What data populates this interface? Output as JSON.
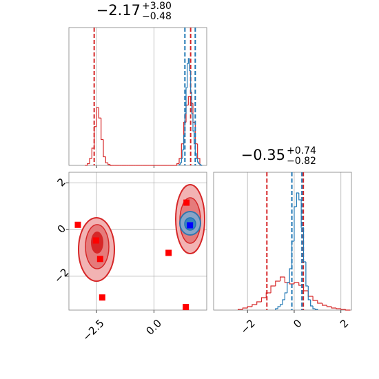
{
  "chart_data": [
    {
      "type": "histogram",
      "title": {
        "value": "−2.17",
        "upper": "+3.80",
        "lower": "−0.48"
      },
      "xlim": [
        -3.7,
        2.3
      ],
      "ylim": [
        0,
        160
      ],
      "xticks": [
        {
          "value": -2.5,
          "label": "−2.5"
        },
        {
          "value": 0,
          "label": "0.0"
        }
      ],
      "grid": true,
      "series": [
        {
          "color": "#d62728",
          "bins": [
            -3.0,
            -2.9,
            -2.8,
            -2.7,
            -2.6,
            -2.5,
            -2.4,
            -2.3,
            -2.2,
            -2.1,
            -2.0,
            -1.9,
            -1.8,
            -1.7,
            -1.6,
            -1.5,
            -1.4,
            -1.3,
            -1.2,
            -1.1,
            -1.0,
            -0.9,
            -0.8,
            -0.7,
            -0.6,
            -0.5,
            -0.4,
            -0.3,
            -0.2,
            -0.1,
            0.0,
            0.1,
            0.2,
            0.3,
            0.4,
            0.5,
            0.6,
            0.7,
            0.8,
            0.9,
            1.0,
            1.1,
            1.2,
            1.3,
            1.4,
            1.5,
            1.6,
            1.7,
            1.8,
            1.9,
            2.0
          ],
          "values": [
            0,
            2,
            8,
            20,
            45,
            67,
            55,
            30,
            10,
            3,
            1,
            0,
            0,
            0,
            0,
            0,
            0,
            0,
            0,
            0,
            0,
            0,
            0,
            0,
            0,
            0,
            0,
            0,
            0,
            0,
            0,
            0,
            0,
            0,
            0,
            0,
            0,
            0,
            0,
            0,
            2,
            8,
            25,
            50,
            70,
            80,
            72,
            50,
            25,
            8
          ],
          "quantiles": [
            -2.6,
            1.6
          ]
        },
        {
          "color": "#1f77b4",
          "bins": [
            1.1,
            1.15,
            1.2,
            1.25,
            1.3,
            1.35,
            1.4,
            1.45,
            1.5,
            1.55,
            1.6,
            1.65,
            1.7,
            1.75,
            1.8,
            1.85,
            1.9,
            1.95,
            2.0,
            2.05,
            2.1
          ],
          "values": [
            1,
            3,
            8,
            18,
            35,
            60,
            90,
            118,
            124,
            110,
            85,
            60,
            40,
            25,
            14,
            8,
            4,
            2,
            1,
            0
          ],
          "quantiles": [
            1.35,
            1.8
          ]
        }
      ]
    },
    {
      "type": "scatter",
      "xlim": [
        -3.7,
        2.3
      ],
      "ylim": [
        -3.45,
        2.45
      ],
      "xticks": [
        {
          "value": -2.5,
          "label": "−2.5"
        },
        {
          "value": 0,
          "label": "0.0"
        }
      ],
      "yticks": [
        {
          "value": -2,
          "label": "−2"
        },
        0,
        2
      ],
      "grid": true,
      "series": [
        {
          "color": "#ff0000",
          "x": [
            -3.31,
            -2.52,
            -2.34,
            -2.25,
            0.64,
            1.42,
            1.39
          ],
          "y": [
            0.2,
            -0.47,
            -1.26,
            -2.91,
            -1.0,
            1.15,
            -3.32
          ]
        },
        {
          "color": "#0000ff",
          "x": [
            1.57
          ],
          "y": [
            0.18
          ]
        }
      ]
    },
    {
      "type": "histogram",
      "title": {
        "value": "−0.35",
        "upper": "+0.74",
        "lower": "−0.82"
      },
      "xlim": [
        -3.45,
        2.45
      ],
      "ylim": [
        0,
        200
      ],
      "xticks": [
        {
          "value": -2,
          "label": "−2"
        },
        0,
        2
      ],
      "grid": true,
      "series": [
        {
          "color": "#d62728",
          "bins": [
            -2.4,
            -2.2,
            -2.0,
            -1.8,
            -1.6,
            -1.4,
            -1.2,
            -1.0,
            -0.8,
            -0.6,
            -0.4,
            -0.2,
            0.0,
            0.2,
            0.4,
            0.6,
            0.8,
            1.0,
            1.2,
            1.4,
            1.6,
            1.8,
            2.0,
            2.2,
            2.4
          ],
          "values": [
            1,
            3,
            5,
            8,
            12,
            18,
            25,
            35,
            42,
            48,
            40,
            38,
            40,
            36,
            28,
            20,
            14,
            10,
            7,
            5,
            3,
            2,
            1,
            0
          ],
          "quantiles": [
            -1.17,
            0.39
          ]
        },
        {
          "color": "#1f77b4",
          "bins": [
            -0.8,
            -0.7,
            -0.6,
            -0.5,
            -0.4,
            -0.3,
            -0.2,
            -0.1,
            0.0,
            0.1,
            0.2,
            0.3,
            0.4,
            0.5,
            0.6,
            0.7,
            0.8,
            0.9,
            1.0
          ],
          "values": [
            2,
            5,
            8,
            15,
            25,
            40,
            60,
            100,
            150,
            170,
            160,
            120,
            70,
            35,
            15,
            6,
            2,
            1
          ],
          "quantiles": [
            -0.1,
            0.33
          ]
        }
      ]
    }
  ]
}
